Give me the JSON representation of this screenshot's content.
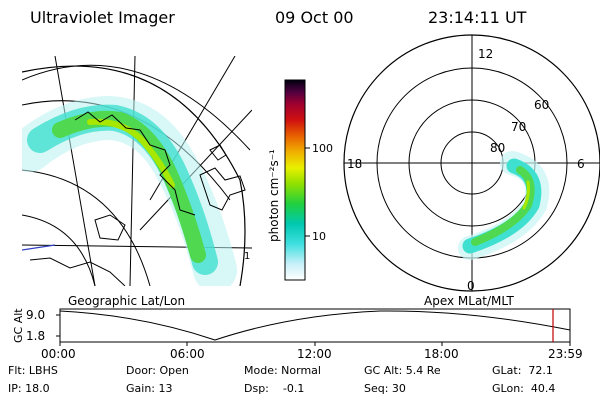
{
  "header": {
    "instrument": "Ultraviolet Imager",
    "date": "09 Oct 00",
    "time": "23:14:11 UT"
  },
  "geo_map": {
    "label": "Geographic Lat/Lon",
    "tick_label": "1"
  },
  "colorbar": {
    "unit_label": "photon cm⁻²s⁻¹",
    "ticks": [
      "100",
      "10"
    ],
    "palette": [
      "#ffffff",
      "#7fe0f0",
      "#00d8c8",
      "#20d040",
      "#a8e000",
      "#f0f000",
      "#f0a000",
      "#e84000",
      "#c00020",
      "#800040",
      "#400040",
      "#000000"
    ]
  },
  "polar_plot": {
    "label": "Apex MLat/MLT",
    "mlt_labels": [
      "12",
      "18",
      "6",
      "0"
    ],
    "lat_labels": [
      "60",
      "70",
      "80"
    ]
  },
  "timeline": {
    "ylabel": "GC Alt",
    "y_ticks": [
      "9.0",
      "1.8"
    ],
    "x_ticks": [
      "00:00",
      "06:00",
      "12:00",
      "18:00",
      "23:59"
    ],
    "marker_color": "#c00000"
  },
  "info": {
    "filter": "Flt: LBHS",
    "ip": "IP: 18.0",
    "door": "Door: Open",
    "gain": "Gain: 13",
    "mode": "Mode: Normal",
    "dsp": "Dsp:    -0.1",
    "gc_alt": "GC Alt: 5.4 Re",
    "seq": "Seq: 30",
    "glat": "GLat:  72.1",
    "glon": "GLon:  40.4"
  }
}
